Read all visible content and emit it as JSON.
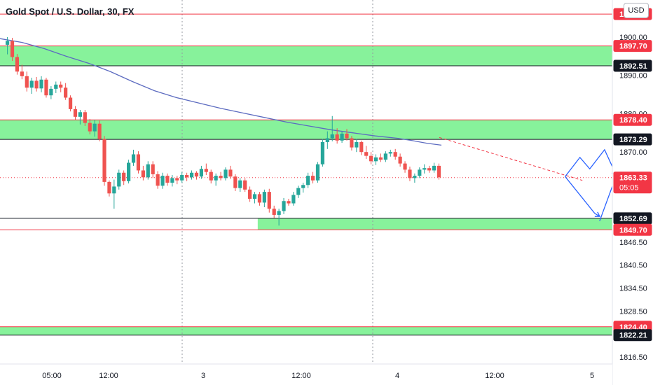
{
  "chart_title": "Gold Spot / U.S. Dollar, 30, FX",
  "currency": "USD",
  "colors": {
    "up": "#26a69a",
    "down": "#ef5350",
    "zone": "#72f08a",
    "ma": "#5c6bc0",
    "red_line": "#f23645",
    "dark_line": "#131722",
    "blue_path": "#2962ff"
  },
  "chart_data": {
    "type": "candlestick",
    "symbol": "XAUUSD",
    "timeframe": "30",
    "x_ticks": [
      "05:00",
      "12:00",
      "3",
      "12:00",
      "4",
      "12:00",
      "5"
    ],
    "y_ticks": [
      1900.0,
      1890.0,
      1880.0,
      1870.0,
      1864.0,
      1846.5,
      1840.5,
      1834.5,
      1828.5,
      1816.5
    ],
    "ylim": [
      1814.5,
      1906.5
    ],
    "price_labels": [
      {
        "value": 1906.0,
        "text": "1906.00",
        "style": "red-line"
      },
      {
        "value": 1897.7,
        "text": "1897.70",
        "style": "red-line"
      },
      {
        "value": 1892.51,
        "text": "1892.51",
        "style": "dark-line"
      },
      {
        "value": 1878.4,
        "text": "1878.40",
        "style": "red-line"
      },
      {
        "value": 1873.29,
        "text": "1873.29",
        "style": "dark-line"
      },
      {
        "value": 1863.33,
        "text": "1863.33",
        "sub": "05:05",
        "style": "current"
      },
      {
        "value": 1852.69,
        "text": "1852.69",
        "style": "dark-line"
      },
      {
        "value": 1849.7,
        "text": "1849.70",
        "style": "red-line"
      },
      {
        "value": 1824.4,
        "text": "1824.40",
        "style": "red-line"
      },
      {
        "value": 1822.21,
        "text": "1822.21",
        "style": "dark-line"
      }
    ],
    "zones": [
      {
        "from": 1892.51,
        "to": 1897.7,
        "x_start_bar": 0
      },
      {
        "from": 1873.29,
        "to": 1878.4,
        "x_start_bar": 0
      },
      {
        "from": 1849.7,
        "to": 1852.69,
        "x_start_bar": 52
      },
      {
        "from": 1822.21,
        "to": 1824.4,
        "x_start_bar": 0
      }
    ],
    "horizontal_lines": [
      {
        "value": 1906.0,
        "kind": "red"
      },
      {
        "value": 1849.7,
        "kind": "red"
      },
      {
        "value": 1863.33,
        "kind": "dotted-red"
      }
    ],
    "candles": [
      [
        1898.0,
        1900.0,
        1895.5,
        1899.0
      ],
      [
        1899.0,
        1899.8,
        1893.8,
        1894.8
      ],
      [
        1894.8,
        1895.6,
        1890.2,
        1891.0
      ],
      [
        1891.0,
        1892.8,
        1889.0,
        1889.8
      ],
      [
        1889.8,
        1891.0,
        1885.8,
        1886.8
      ],
      [
        1886.8,
        1889.4,
        1885.2,
        1888.6
      ],
      [
        1888.6,
        1889.6,
        1885.8,
        1886.6
      ],
      [
        1886.6,
        1889.8,
        1885.6,
        1888.9
      ],
      [
        1888.9,
        1889.4,
        1884.2,
        1884.8
      ],
      [
        1884.8,
        1887.2,
        1883.8,
        1886.5
      ],
      [
        1886.5,
        1888.4,
        1885.4,
        1887.6
      ],
      [
        1887.6,
        1888.4,
        1885.6,
        1886.8
      ],
      [
        1886.8,
        1888.0,
        1883.6,
        1884.2
      ],
      [
        1884.2,
        1884.8,
        1880.6,
        1881.2
      ],
      [
        1881.2,
        1882.0,
        1878.4,
        1879.2
      ],
      [
        1879.2,
        1881.0,
        1877.2,
        1880.4
      ],
      [
        1880.4,
        1881.0,
        1876.8,
        1877.6
      ],
      [
        1877.6,
        1878.6,
        1874.6,
        1875.4
      ],
      [
        1875.4,
        1878.4,
        1874.0,
        1877.4
      ],
      [
        1877.4,
        1878.2,
        1872.8,
        1873.4
      ],
      [
        1873.4,
        1874.2,
        1861.2,
        1862.2
      ],
      [
        1862.2,
        1862.6,
        1858.4,
        1859.2
      ],
      [
        1859.2,
        1862.8,
        1855.2,
        1861.0
      ],
      [
        1861.0,
        1865.4,
        1860.2,
        1864.6
      ],
      [
        1864.6,
        1865.2,
        1861.4,
        1862.4
      ],
      [
        1862.4,
        1868.0,
        1861.8,
        1867.2
      ],
      [
        1867.2,
        1870.6,
        1866.4,
        1869.4
      ],
      [
        1869.4,
        1870.2,
        1864.4,
        1865.2
      ],
      [
        1865.2,
        1866.4,
        1862.6,
        1863.4
      ],
      [
        1863.4,
        1867.6,
        1862.8,
        1866.8
      ],
      [
        1866.8,
        1867.6,
        1863.2,
        1864.2
      ],
      [
        1864.2,
        1865.0,
        1860.4,
        1861.2
      ],
      [
        1861.2,
        1864.6,
        1860.4,
        1863.8
      ],
      [
        1863.8,
        1864.4,
        1861.2,
        1862.0
      ],
      [
        1862.0,
        1864.0,
        1861.0,
        1863.2
      ],
      [
        1863.2,
        1863.8,
        1861.6,
        1862.6
      ],
      [
        1862.6,
        1864.8,
        1862.0,
        1864.0
      ],
      [
        1864.0,
        1864.6,
        1862.4,
        1863.4
      ],
      [
        1863.4,
        1865.2,
        1862.8,
        1864.6
      ],
      [
        1864.6,
        1865.0,
        1862.8,
        1863.6
      ],
      [
        1863.6,
        1866.4,
        1863.0,
        1865.6
      ],
      [
        1865.6,
        1867.0,
        1864.0,
        1864.8
      ],
      [
        1864.8,
        1865.4,
        1861.8,
        1862.6
      ],
      [
        1862.6,
        1864.4,
        1861.2,
        1863.8
      ],
      [
        1863.8,
        1864.8,
        1862.6,
        1863.2
      ],
      [
        1863.2,
        1866.0,
        1862.6,
        1865.4
      ],
      [
        1865.4,
        1866.4,
        1863.0,
        1863.6
      ],
      [
        1863.6,
        1864.2,
        1859.8,
        1860.6
      ],
      [
        1860.6,
        1863.2,
        1859.6,
        1862.6
      ],
      [
        1862.6,
        1863.2,
        1859.6,
        1860.2
      ],
      [
        1860.2,
        1861.0,
        1857.0,
        1857.8
      ],
      [
        1857.8,
        1859.6,
        1856.6,
        1859.0
      ],
      [
        1859.0,
        1859.6,
        1856.0,
        1856.8
      ],
      [
        1856.8,
        1860.2,
        1855.6,
        1859.6
      ],
      [
        1859.6,
        1860.4,
        1854.2,
        1855.2
      ],
      [
        1855.2,
        1856.0,
        1852.8,
        1853.6
      ],
      [
        1853.6,
        1855.2,
        1850.8,
        1854.6
      ],
      [
        1854.6,
        1858.0,
        1853.8,
        1857.2
      ],
      [
        1857.2,
        1857.8,
        1856.0,
        1856.6
      ],
      [
        1856.6,
        1859.6,
        1856.0,
        1858.8
      ],
      [
        1858.8,
        1861.2,
        1858.0,
        1860.6
      ],
      [
        1860.6,
        1862.0,
        1859.4,
        1861.4
      ],
      [
        1861.4,
        1864.6,
        1860.6,
        1863.8
      ],
      [
        1863.8,
        1864.8,
        1861.8,
        1862.6
      ],
      [
        1862.6,
        1867.4,
        1862.0,
        1866.8
      ],
      [
        1866.8,
        1873.4,
        1866.2,
        1872.6
      ],
      [
        1872.6,
        1875.4,
        1870.8,
        1873.6
      ],
      [
        1873.6,
        1879.4,
        1872.8,
        1874.6
      ],
      [
        1874.6,
        1876.2,
        1872.2,
        1873.0
      ],
      [
        1873.0,
        1875.4,
        1872.4,
        1874.8
      ],
      [
        1874.8,
        1876.0,
        1873.0,
        1873.6
      ],
      [
        1873.6,
        1874.2,
        1870.4,
        1871.2
      ],
      [
        1871.2,
        1873.4,
        1870.0,
        1872.6
      ],
      [
        1872.6,
        1873.0,
        1869.2,
        1870.0
      ],
      [
        1870.0,
        1871.6,
        1868.2,
        1869.0
      ],
      [
        1869.0,
        1870.0,
        1866.8,
        1867.6
      ],
      [
        1867.6,
        1869.4,
        1866.6,
        1868.6
      ],
      [
        1868.6,
        1869.6,
        1867.4,
        1868.0
      ],
      [
        1868.0,
        1870.2,
        1867.4,
        1869.6
      ],
      [
        1869.6,
        1870.6,
        1868.8,
        1870.0
      ],
      [
        1870.0,
        1870.8,
        1868.0,
        1868.8
      ],
      [
        1868.8,
        1869.6,
        1866.2,
        1867.0
      ],
      [
        1867.0,
        1867.6,
        1864.6,
        1865.4
      ],
      [
        1865.4,
        1866.2,
        1862.4,
        1863.2
      ],
      [
        1863.2,
        1864.4,
        1862.0,
        1863.8
      ],
      [
        1863.8,
        1866.0,
        1863.2,
        1865.4
      ],
      [
        1865.4,
        1866.8,
        1864.4,
        1865.8
      ],
      [
        1865.8,
        1866.4,
        1864.6,
        1865.2
      ],
      [
        1865.2,
        1867.2,
        1864.6,
        1866.4
      ],
      [
        1866.4,
        1867.0,
        1862.8,
        1863.4
      ]
    ],
    "moving_average": [
      [
        0,
        1899.6
      ],
      [
        15,
        1898.6
      ],
      [
        30,
        1897.0
      ],
      [
        45,
        1895.0
      ],
      [
        60,
        1893.2
      ],
      [
        75,
        1891.0
      ],
      [
        90,
        1888.4
      ],
      [
        105,
        1886.0
      ],
      [
        120,
        1884.2
      ],
      [
        135,
        1882.8
      ],
      [
        150,
        1881.4
      ],
      [
        165,
        1880.2
      ],
      [
        180,
        1879.0
      ],
      [
        195,
        1877.8
      ],
      [
        210,
        1876.8
      ],
      [
        225,
        1875.8
      ],
      [
        240,
        1875.0
      ],
      [
        255,
        1874.2
      ],
      [
        270,
        1873.6
      ],
      [
        280,
        1873.0
      ],
      [
        290,
        1872.3
      ],
      [
        300,
        1871.8
      ]
    ],
    "trendline": {
      "from": [
        1870.8,
        1873.8
      ],
      "to": [
        1894,
        1862.6
      ],
      "style": "dashed",
      "color": "red"
    },
    "projection_paths": [
      {
        "color": "blue",
        "points": [
          [
            1891.2,
            1863.6
          ],
          [
            1896,
            1854.0
          ],
          [
            1896.8,
            1853.2
          ]
        ]
      },
      {
        "color": "blue",
        "points": [
          [
            1891.2,
            1863.6
          ],
          [
            1893.6,
            1868.6
          ],
          [
            1895.2,
            1865.6
          ],
          [
            1897.6,
            1870.6
          ],
          [
            1898.8,
            1866.4
          ],
          [
            1902,
            1871.4
          ]
        ]
      },
      {
        "color": "blue",
        "points": [
          [
            1896.8,
            1852.0
          ],
          [
            1906,
            1892.4
          ],
          [
            1920,
            1852.6
          ]
        ]
      },
      {
        "color": "blue",
        "points": [
          [
            1898.8,
            1864.4
          ],
          [
            1913,
            1892.2
          ],
          [
            1928,
            1852.6
          ]
        ]
      },
      {
        "color": "red",
        "points": [
          [
            1900,
            1849.8
          ],
          [
            1902,
            1847.4
          ],
          [
            1903.2,
            1848.6
          ],
          [
            1908,
            1825.2
          ]
        ]
      }
    ]
  }
}
